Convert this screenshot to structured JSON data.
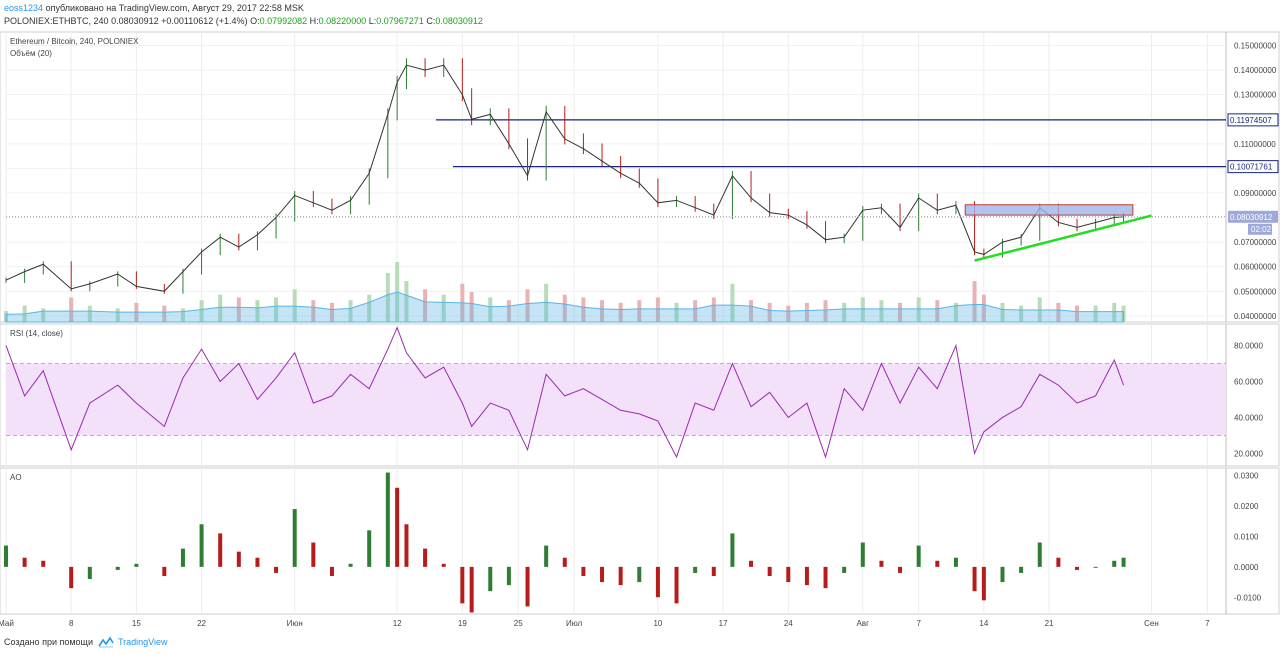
{
  "header": {
    "user": "eoss1234",
    "published_text": "опубликовано на TradingView.com, Август 29, 2017 22:58 MSK",
    "symbol": "POLONIEX:ETHBTC, 240",
    "last": "0.08030912",
    "change": "+0.00110612 (+1.4%)",
    "o_label": "O:",
    "o_value": "0.07992082",
    "h_label": "H:",
    "h_value": "0.08220000",
    "l_label": "L:",
    "l_value": "0.07967271",
    "c_label": "C:",
    "c_value": "0.08030912"
  },
  "footer": {
    "made_with": "Создано при помощи",
    "brand": "TradingView"
  },
  "colors": {
    "up": "#2e7d32",
    "down": "#b71c1c",
    "rsi": "#9c27b0",
    "rsi_band": "#f3e1fa",
    "volume_ma": "#5ab4e6",
    "hline": "#1a237e",
    "trend": "#22dd22",
    "box": "#9fb4ec",
    "last_price_bg": "#9fa8da"
  },
  "chart_data": [
    {
      "type": "line",
      "title": "Ethereum / Bitcoin, 240, POLONIEX",
      "subtitle": "Объём (20)",
      "series": [
        {
          "name": "Ethereum / Bitcoin",
          "x": [
            "2017-05-01",
            "2017-05-03",
            "2017-05-05",
            "2017-05-08",
            "2017-05-10",
            "2017-05-13",
            "2017-05-15",
            "2017-05-18",
            "2017-05-20",
            "2017-05-22",
            "2017-05-24",
            "2017-05-26",
            "2017-05-28",
            "2017-05-30",
            "2017-06-01",
            "2017-06-03",
            "2017-06-05",
            "2017-06-07",
            "2017-06-09",
            "2017-06-11",
            "2017-06-12",
            "2017-06-13",
            "2017-06-15",
            "2017-06-17",
            "2017-06-19",
            "2017-06-20",
            "2017-06-22",
            "2017-06-24",
            "2017-06-26",
            "2017-06-28",
            "2017-06-30",
            "2017-07-02",
            "2017-07-04",
            "2017-07-06",
            "2017-07-08",
            "2017-07-10",
            "2017-07-12",
            "2017-07-14",
            "2017-07-16",
            "2017-07-18",
            "2017-07-20",
            "2017-07-22",
            "2017-07-24",
            "2017-07-26",
            "2017-07-28",
            "2017-07-30",
            "2017-08-01",
            "2017-08-03",
            "2017-08-05",
            "2017-08-07",
            "2017-08-09",
            "2017-08-11",
            "2017-08-13",
            "2017-08-14",
            "2017-08-16",
            "2017-08-18",
            "2017-08-20",
            "2017-08-22",
            "2017-08-24",
            "2017-08-26",
            "2017-08-28",
            "2017-08-29"
          ],
          "values": [
            0.0545,
            0.058,
            0.061,
            0.051,
            0.053,
            0.057,
            0.052,
            0.05,
            0.058,
            0.066,
            0.072,
            0.068,
            0.073,
            0.08,
            0.089,
            0.086,
            0.083,
            0.087,
            0.098,
            0.122,
            0.135,
            0.142,
            0.14,
            0.142,
            0.13,
            0.12,
            0.122,
            0.11,
            0.097,
            0.123,
            0.112,
            0.108,
            0.103,
            0.098,
            0.094,
            0.086,
            0.087,
            0.084,
            0.081,
            0.097,
            0.088,
            0.082,
            0.081,
            0.077,
            0.071,
            0.072,
            0.083,
            0.084,
            0.076,
            0.088,
            0.083,
            0.085,
            0.066,
            0.065,
            0.07,
            0.072,
            0.084,
            0.078,
            0.076,
            0.078,
            0.08,
            0.0803
          ]
        }
      ],
      "volume": [
        4,
        6,
        5,
        9,
        6,
        5,
        7,
        6,
        5,
        8,
        10,
        9,
        8,
        9,
        12,
        8,
        7,
        8,
        10,
        18,
        22,
        15,
        12,
        10,
        14,
        11,
        9,
        8,
        12,
        14,
        10,
        9,
        8,
        7,
        8,
        9,
        7,
        8,
        9,
        14,
        8,
        7,
        6,
        7,
        8,
        7,
        9,
        8,
        7,
        9,
        8,
        7,
        15,
        10,
        7,
        6,
        9,
        7,
        6,
        6,
        7,
        6
      ],
      "horizontal_lines": [
        0.11974507,
        0.10071761
      ],
      "last_price_label": "0.08030912",
      "countdown_label": "02:02",
      "ylim": [
        0.0375,
        0.1555
      ],
      "yticks": [
        "0.04000000",
        "0.05000000",
        "0.06000000",
        "0.07000000",
        "0.08000000",
        "0.09000000",
        "0.10000000",
        "0.11000000",
        "0.12000000",
        "0.13000000",
        "0.14000000",
        "0.15000000"
      ]
    },
    {
      "type": "line",
      "title": "RSI (14, close)",
      "series": [
        {
          "name": "RSI",
          "x": [
            "2017-05-01",
            "2017-05-03",
            "2017-05-05",
            "2017-05-08",
            "2017-05-10",
            "2017-05-13",
            "2017-05-15",
            "2017-05-18",
            "2017-05-20",
            "2017-05-22",
            "2017-05-24",
            "2017-05-26",
            "2017-05-28",
            "2017-05-30",
            "2017-06-01",
            "2017-06-03",
            "2017-06-05",
            "2017-06-07",
            "2017-06-09",
            "2017-06-11",
            "2017-06-12",
            "2017-06-13",
            "2017-06-15",
            "2017-06-17",
            "2017-06-19",
            "2017-06-20",
            "2017-06-22",
            "2017-06-24",
            "2017-06-26",
            "2017-06-28",
            "2017-06-30",
            "2017-07-02",
            "2017-07-04",
            "2017-07-06",
            "2017-07-08",
            "2017-07-10",
            "2017-07-12",
            "2017-07-14",
            "2017-07-16",
            "2017-07-18",
            "2017-07-20",
            "2017-07-22",
            "2017-07-24",
            "2017-07-26",
            "2017-07-28",
            "2017-07-30",
            "2017-08-01",
            "2017-08-03",
            "2017-08-05",
            "2017-08-07",
            "2017-08-09",
            "2017-08-11",
            "2017-08-13",
            "2017-08-14",
            "2017-08-16",
            "2017-08-18",
            "2017-08-20",
            "2017-08-22",
            "2017-08-24",
            "2017-08-26",
            "2017-08-28",
            "2017-08-29"
          ],
          "values": [
            80,
            52,
            66,
            22,
            48,
            58,
            48,
            35,
            62,
            78,
            60,
            70,
            50,
            62,
            76,
            48,
            52,
            64,
            56,
            78,
            90,
            76,
            62,
            68,
            48,
            35,
            48,
            44,
            22,
            64,
            52,
            56,
            50,
            44,
            42,
            38,
            18,
            48,
            44,
            70,
            46,
            54,
            40,
            48,
            18,
            56,
            44,
            70,
            48,
            68,
            56,
            80,
            20,
            32,
            40,
            46,
            64,
            58,
            48,
            52,
            72,
            58
          ]
        }
      ],
      "bands": [
        30,
        70
      ],
      "ylim": [
        13,
        92
      ],
      "yticks": [
        "20.0000",
        "40.0000",
        "60.0000",
        "80.0000"
      ]
    },
    {
      "type": "bar",
      "title": "AO",
      "x": [
        "2017-05-01",
        "2017-05-03",
        "2017-05-05",
        "2017-05-08",
        "2017-05-10",
        "2017-05-13",
        "2017-05-15",
        "2017-05-18",
        "2017-05-20",
        "2017-05-22",
        "2017-05-24",
        "2017-05-26",
        "2017-05-28",
        "2017-05-30",
        "2017-06-01",
        "2017-06-03",
        "2017-06-05",
        "2017-06-07",
        "2017-06-09",
        "2017-06-11",
        "2017-06-12",
        "2017-06-13",
        "2017-06-15",
        "2017-06-17",
        "2017-06-19",
        "2017-06-20",
        "2017-06-22",
        "2017-06-24",
        "2017-06-26",
        "2017-06-28",
        "2017-06-30",
        "2017-07-02",
        "2017-07-04",
        "2017-07-06",
        "2017-07-08",
        "2017-07-10",
        "2017-07-12",
        "2017-07-14",
        "2017-07-16",
        "2017-07-18",
        "2017-07-20",
        "2017-07-22",
        "2017-07-24",
        "2017-07-26",
        "2017-07-28",
        "2017-07-30",
        "2017-08-01",
        "2017-08-03",
        "2017-08-05",
        "2017-08-07",
        "2017-08-09",
        "2017-08-11",
        "2017-08-13",
        "2017-08-14",
        "2017-08-16",
        "2017-08-18",
        "2017-08-20",
        "2017-08-22",
        "2017-08-24",
        "2017-08-26",
        "2017-08-28",
        "2017-08-29"
      ],
      "values": [
        0.007,
        0.003,
        0.002,
        -0.007,
        -0.004,
        -0.001,
        0.001,
        -0.003,
        0.006,
        0.014,
        0.011,
        0.005,
        0.003,
        -0.002,
        0.019,
        0.008,
        -0.003,
        0.001,
        0.012,
        0.031,
        0.026,
        0.014,
        0.006,
        0.001,
        -0.012,
        -0.015,
        -0.008,
        -0.006,
        -0.013,
        0.007,
        0.003,
        -0.003,
        -0.005,
        -0.006,
        -0.005,
        -0.01,
        -0.012,
        -0.002,
        -0.003,
        0.011,
        0.002,
        -0.003,
        -0.005,
        -0.006,
        -0.007,
        -0.002,
        0.008,
        0.002,
        -0.002,
        0.007,
        0.002,
        0.003,
        -0.008,
        -0.011,
        -0.005,
        -0.002,
        0.008,
        0.003,
        -0.001,
        0.0,
        0.002,
        0.003
      ],
      "ylim": [
        -0.0155,
        0.0325
      ],
      "yticks": [
        "-0.0100",
        "0.0000",
        "0.0100",
        "0.0200",
        "0.0300"
      ]
    }
  ],
  "x_axis": {
    "start": "2017-05-01",
    "end": "2017-09-09",
    "ticks": [
      {
        "label": "Май",
        "date": "2017-05-01"
      },
      {
        "label": "8",
        "date": "2017-05-08"
      },
      {
        "label": "15",
        "date": "2017-05-15"
      },
      {
        "label": "22",
        "date": "2017-05-22"
      },
      {
        "label": "Июн",
        "date": "2017-06-01"
      },
      {
        "label": "12",
        "date": "2017-06-12"
      },
      {
        "label": "19",
        "date": "2017-06-19"
      },
      {
        "label": "25",
        "date": "2017-06-25"
      },
      {
        "label": "Июл",
        "date": "2017-07-01"
      },
      {
        "label": "10",
        "date": "2017-07-10"
      },
      {
        "label": "17",
        "date": "2017-07-17"
      },
      {
        "label": "24",
        "date": "2017-07-24"
      },
      {
        "label": "Авг",
        "date": "2017-08-01"
      },
      {
        "label": "7",
        "date": "2017-08-07"
      },
      {
        "label": "14",
        "date": "2017-08-14"
      },
      {
        "label": "21",
        "date": "2017-08-21"
      },
      {
        "label": "Сен",
        "date": "2017-09-01"
      },
      {
        "label": "7",
        "date": "2017-09-07"
      }
    ]
  }
}
